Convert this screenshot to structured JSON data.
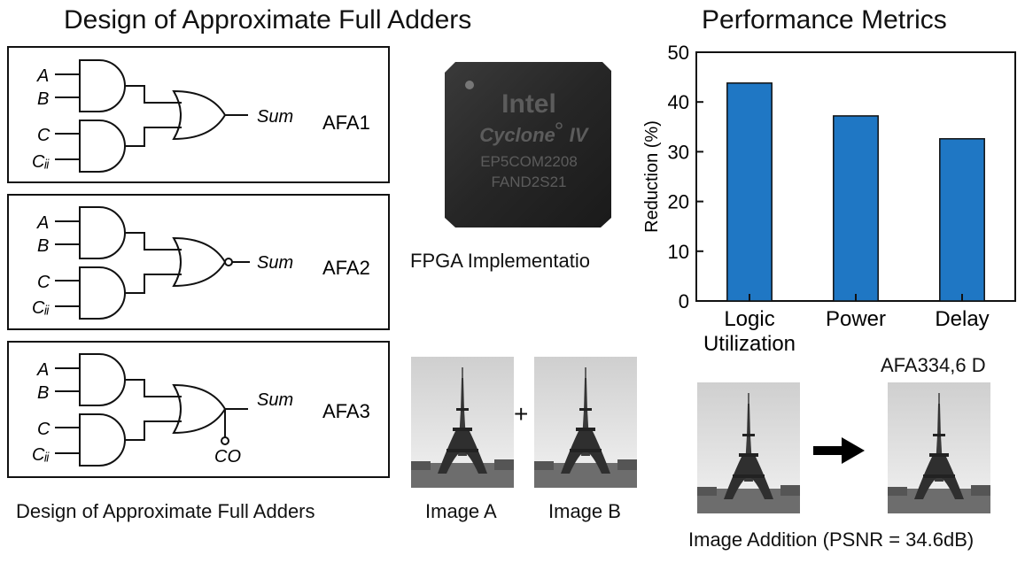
{
  "left_title": "Design of Approximate Full Adders",
  "right_title": "Performance Metrics",
  "circuits": [
    {
      "name": "AFA1",
      "inputs": [
        "A",
        "B",
        "C",
        "Cᵢᵢ"
      ],
      "output": "Sum",
      "carry": ""
    },
    {
      "name": "AFA2",
      "inputs": [
        "A",
        "B",
        "C",
        "Cᵢᵢ"
      ],
      "output": "Sum",
      "carry": ""
    },
    {
      "name": "AFA3",
      "inputs": [
        "A",
        "B",
        "C",
        "Cᵢᵢ"
      ],
      "output": "Sum",
      "carry": "CO"
    }
  ],
  "circuits_caption": "Design of Approximate Full Adders",
  "chip": {
    "brand": "Intel",
    "family": "Cyclone",
    "family_suffix": "IV",
    "part_line1": "EP5COM2208",
    "part_line2": "FAND2S21",
    "caption": "FPGA Implementatio"
  },
  "image_pair": {
    "plus": "+",
    "labels": [
      "Image A",
      "Image B"
    ]
  },
  "image_addition": {
    "result_label": "AFA334,6 D",
    "caption": "Image Addition (PSNR = 34.6dB)"
  },
  "chart_data": {
    "type": "bar",
    "categories": [
      [
        "Logic",
        "Utilization"
      ],
      [
        "Power"
      ],
      [
        "Delay"
      ]
    ],
    "values": [
      43.8,
      37.2,
      32.6
    ],
    "ylabel": "Reduction (%)",
    "ylim": [
      0,
      50
    ],
    "yticks": [
      0,
      10,
      20,
      30,
      40,
      50
    ],
    "bar_color": "#1f77c4",
    "grid": false
  },
  "colors": {
    "chip_body": "#2a2a2a",
    "chip_text": "#5c5c5c",
    "arrow": "#000000"
  }
}
